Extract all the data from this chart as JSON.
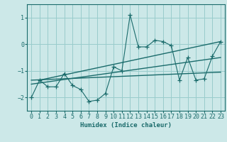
{
  "xlabel": "Humidex (Indice chaleur)",
  "ylabel": "",
  "xlim": [
    -0.5,
    23.5
  ],
  "ylim": [
    -2.5,
    1.5
  ],
  "yticks": [
    -2,
    -1,
    0,
    1
  ],
  "xticks": [
    0,
    1,
    2,
    3,
    4,
    5,
    6,
    7,
    8,
    9,
    10,
    11,
    12,
    13,
    14,
    15,
    16,
    17,
    18,
    19,
    20,
    21,
    22,
    23
  ],
  "bg_color": "#cce8e8",
  "grid_color": "#99cccc",
  "line_color": "#1a6b6b",
  "zigzag_x": [
    0,
    1,
    2,
    3,
    4,
    5,
    6,
    7,
    8,
    9,
    10,
    11,
    12,
    13,
    14,
    15,
    16,
    17,
    18,
    19,
    20,
    21,
    22,
    23
  ],
  "zigzag_y": [
    -2.0,
    -1.35,
    -1.6,
    -1.6,
    -1.1,
    -1.55,
    -1.7,
    -2.15,
    -2.1,
    -1.85,
    -0.85,
    -1.0,
    1.1,
    -0.1,
    -0.1,
    0.15,
    0.1,
    -0.05,
    -1.35,
    -0.5,
    -1.35,
    -1.3,
    -0.45,
    0.1
  ],
  "trend1_x": [
    0,
    23
  ],
  "trend1_y": [
    -1.35,
    -1.05
  ],
  "trend2_x": [
    0,
    23
  ],
  "trend2_y": [
    -1.5,
    -0.5
  ],
  "trend3_x": [
    1,
    23
  ],
  "trend3_y": [
    -1.35,
    0.1
  ]
}
